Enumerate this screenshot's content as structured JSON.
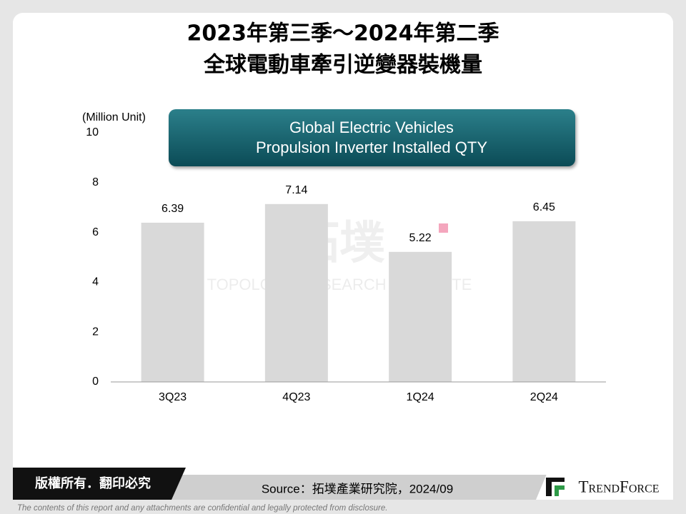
{
  "header": {
    "title_lines": [
      "2023年第三季～2024年第二季",
      "全球電動車牽引逆變器裝機量"
    ]
  },
  "chart_data": {
    "type": "bar",
    "banner_lines": [
      "Global Electric Vehicles",
      "Propulsion Inverter Installed QTY"
    ],
    "y_axis_label": "(Million Unit)",
    "categories": [
      "3Q23",
      "4Q23",
      "1Q24",
      "2Q24"
    ],
    "values": [
      6.39,
      7.14,
      5.22,
      6.45
    ],
    "color": "#d9d9d9",
    "ylim": [
      0,
      10
    ],
    "yticks": [
      0,
      2,
      4,
      6,
      8,
      10
    ],
    "grid": false
  },
  "watermark": {
    "mark": "拓墣",
    "name": "TOPOLOGY RESEARCH INSTITUTE"
  },
  "footer": {
    "copyright": "版權所有．翻印必究",
    "source": "Source：拓墣產業研究院，2024/09",
    "logo": "TrendForce",
    "disclaimer": "The contents of this report and any attachments are confidential and legally protected from disclosure."
  }
}
